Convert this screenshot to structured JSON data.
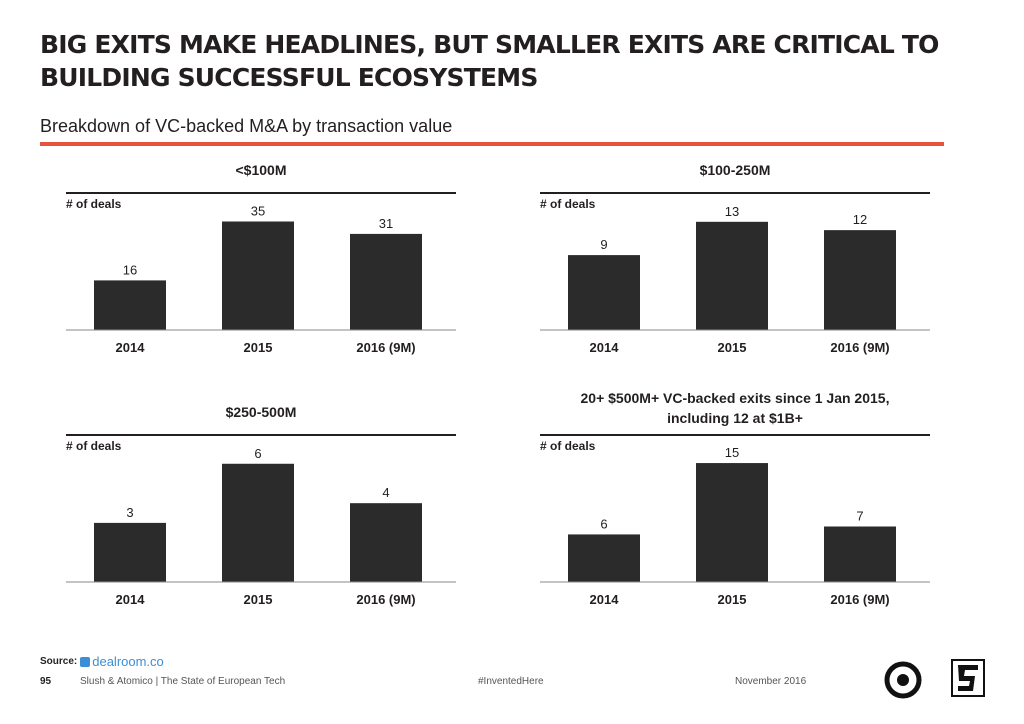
{
  "header": {
    "title": "BIG EXITS MAKE HEADLINES, BUT SMALLER EXITS ARE CRITICAL TO BUILDING SUCCESSFUL ECOSYSTEMS",
    "subtitle": "Breakdown of VC-backed M&A by transaction value"
  },
  "colors": {
    "accent": "#e5533d",
    "bar": "#2b2b2b",
    "text": "#231f20",
    "brand_blue": "#3a8fd6"
  },
  "chart_data": [
    {
      "type": "bar",
      "title": "<$100M",
      "ylabel": "# of deals",
      "categories": [
        "2014",
        "2015",
        "2016 (9M)"
      ],
      "values": [
        16,
        35,
        31
      ],
      "ylim": [
        0,
        40
      ]
    },
    {
      "type": "bar",
      "title": "$100-250M",
      "ylabel": "# of deals",
      "categories": [
        "2014",
        "2015",
        "2016 (9M)"
      ],
      "values": [
        9,
        13,
        12
      ],
      "ylim": [
        0,
        14.9
      ]
    },
    {
      "type": "bar",
      "title": "$250-500M",
      "ylabel": "# of deals",
      "categories": [
        "2014",
        "2015",
        "2016 (9M)"
      ],
      "values": [
        3,
        6,
        4
      ],
      "ylim": [
        0,
        6.8
      ]
    },
    {
      "type": "bar",
      "title": "20+ $500M+ VC-backed exits since 1 Jan 2015,\nincluding 12 at $1B+",
      "ylabel": "# of deals",
      "categories": [
        "2014",
        "2015",
        "2016 (9M)"
      ],
      "values": [
        6,
        15,
        7
      ],
      "ylim": [
        0,
        16.9
      ]
    }
  ],
  "footer": {
    "source_label": "Source:",
    "source_brand": "dealroom.co",
    "page_number": "95",
    "publication": "Slush & Atomico  |  The State of European Tech",
    "hashtag": "#InventedHere",
    "date": "November 2016"
  }
}
